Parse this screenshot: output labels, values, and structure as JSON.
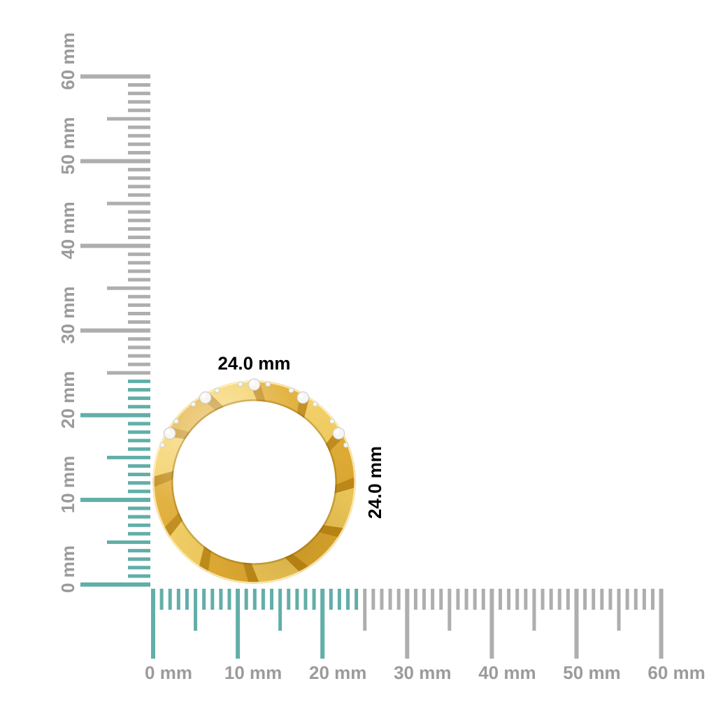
{
  "scene": {
    "background": "#ffffff"
  },
  "dimensions": {
    "width_label": "24.0 mm",
    "height_label": "24.0 mm",
    "label_color": "#9e9e9e"
  },
  "rulers": {
    "unit": "mm",
    "min": 0,
    "max": 60,
    "minor_step": 1,
    "half_step": 5,
    "major_step": 10,
    "highlight_to_mm": 24,
    "colors": {
      "highlight": "#62aea8",
      "tick": "#aeaeae",
      "label": "#9b9b9b"
    },
    "left": {
      "orientation": "vertical",
      "labels": [
        "0 mm",
        "10 mm",
        "20 mm",
        "30 mm",
        "40 mm",
        "50 mm",
        "60 mm"
      ]
    },
    "bottom": {
      "orientation": "horizontal",
      "labels": [
        "0 mm",
        "10 mm",
        "20 mm",
        "30 mm",
        "40 mm",
        "50 mm",
        "60 mm"
      ]
    }
  },
  "ring": {
    "outer_diameter_mm": 24.0,
    "band_colors": {
      "seam": "#c08a16",
      "facet_light": "#f4cf60",
      "facet_mid": "#e2ad33",
      "rim_highlight": "#fff0bf",
      "shadow": "#8a5f06"
    },
    "diamond": {
      "color": "#f7f6f3",
      "edge": "#c9c9c9",
      "positions_deg": [
        30,
        60,
        90,
        120,
        150
      ]
    }
  }
}
